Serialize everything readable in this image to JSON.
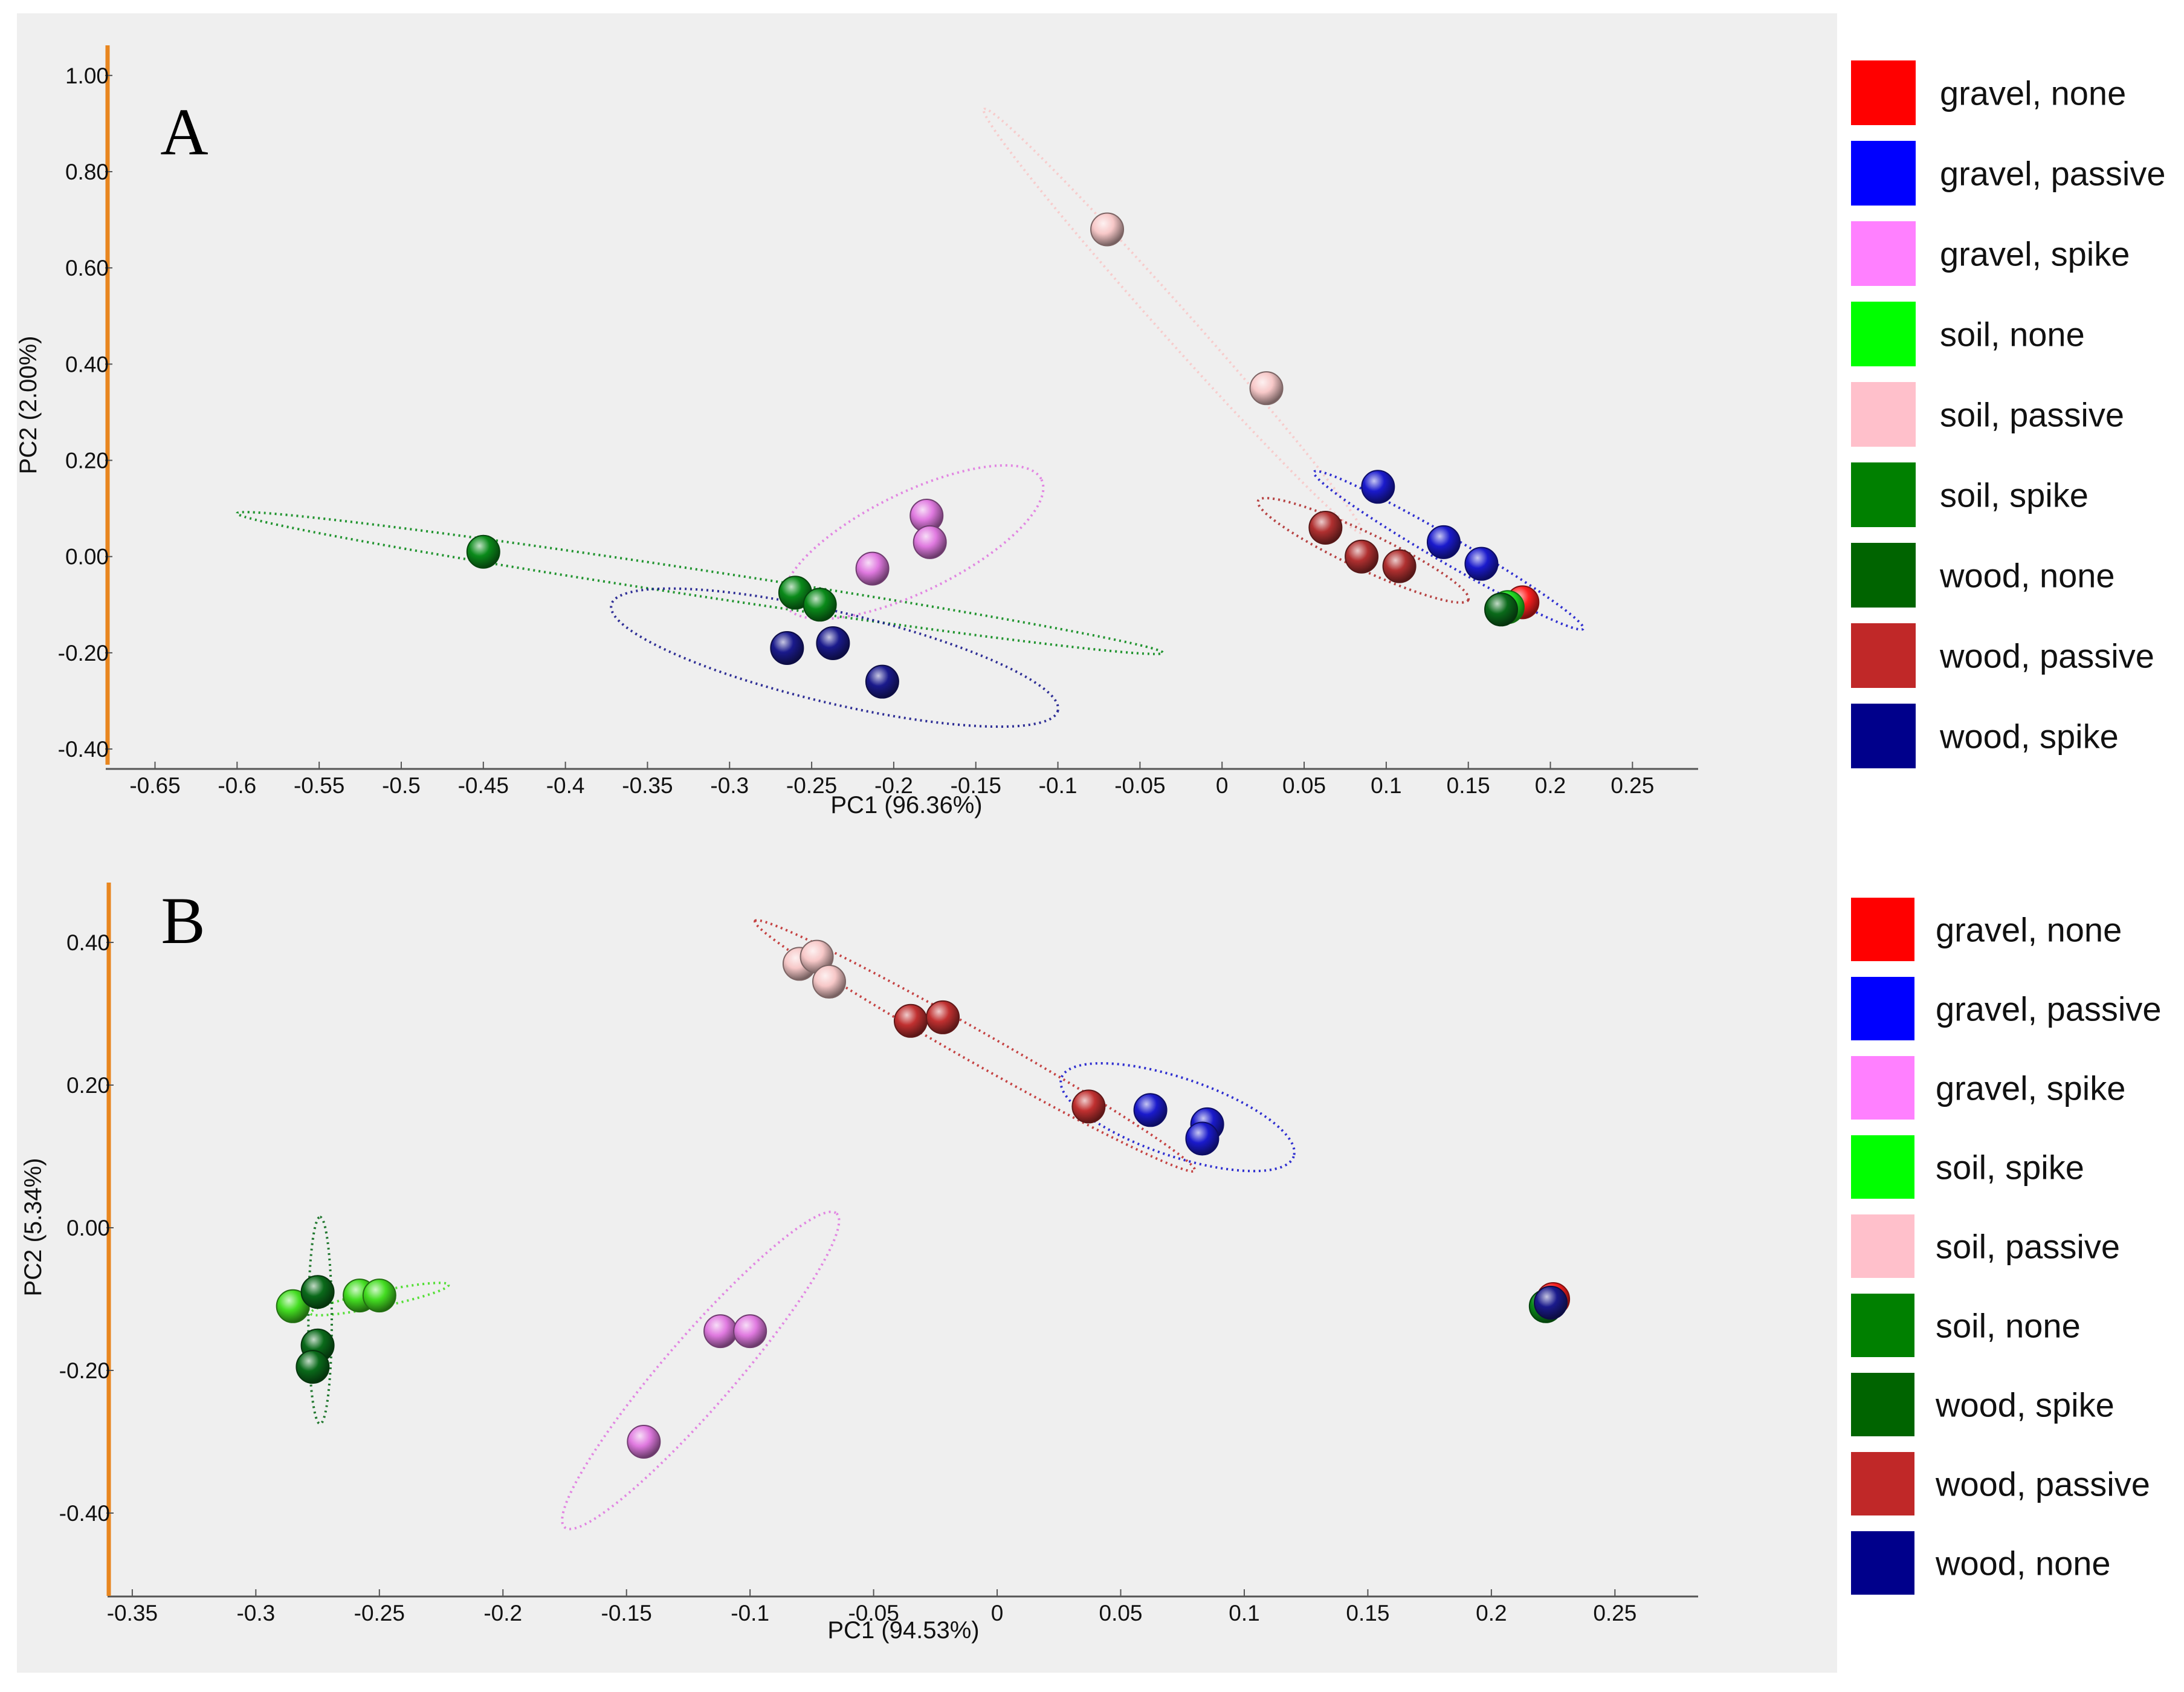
{
  "chart_data": [
    {
      "type": "scatter",
      "panel_label": "A",
      "xlabel": "PC1 (96.36%)",
      "ylabel": "PC2 (2.00%)",
      "xlim": [
        -0.68,
        0.29
      ],
      "ylim": [
        -0.42,
        1.05
      ],
      "xticks": [
        -0.65,
        -0.6,
        -0.55,
        -0.5,
        -0.45,
        -0.4,
        -0.35,
        -0.3,
        -0.25,
        -0.2,
        -0.15,
        -0.1,
        -0.05,
        0,
        0.05,
        0.1,
        0.15,
        0.2,
        0.25
      ],
      "xtick_labels": [
        "-0.65",
        "-0.6",
        "-0.55",
        "-0.5",
        "-0.45",
        "-0.4",
        "-0.35",
        "-0.3",
        "-0.25",
        "-0.2",
        "-0.15",
        "-0.1",
        "-0.05",
        "0",
        "0.05",
        "0.1",
        "0.15",
        "0.2",
        "0.25"
      ],
      "yticks": [
        -0.4,
        -0.2,
        0.0,
        0.2,
        0.4,
        0.6,
        0.8,
        1.0
      ],
      "ytick_labels": [
        "-0.40",
        "-0.20",
        "0.00",
        "0.20",
        "0.40",
        "0.60",
        "0.80",
        "1.00"
      ],
      "legend": [
        {
          "label": "gravel, none",
          "color": "#ff0000"
        },
        {
          "label": "gravel, passive",
          "color": "#0000ff"
        },
        {
          "label": "gravel, spike",
          "color": "#ff80ff"
        },
        {
          "label": "soil, none",
          "color": "#00ff00"
        },
        {
          "label": "soil, passive",
          "color": "#ffc0cb"
        },
        {
          "label": "soil, spike",
          "color": "#008000"
        },
        {
          "label": "wood, none",
          "color": "#006400"
        },
        {
          "label": "wood, passive",
          "color": "#c02828"
        },
        {
          "label": "wood, spike",
          "color": "#00008b"
        }
      ],
      "series": [
        {
          "name": "soil, passive",
          "color": "#f7c8c8",
          "points": [
            [
              -0.07,
              0.68
            ],
            [
              0.027,
              0.35
            ]
          ],
          "ellipse": {
            "center": [
              -0.03,
              0.49
            ],
            "radius_major": 0.31,
            "radius_minor": 0.012,
            "end": [
              -0.145,
              0.93
            ]
          }
        },
        {
          "name": "soil, spike",
          "color": "#0a8a1a",
          "points": [
            [
              -0.45,
              0.01
            ],
            [
              -0.26,
              -0.075
            ],
            [
              -0.245,
              -0.1
            ]
          ],
          "ellipse": {
            "center": [
              -0.318,
              -0.055
            ],
            "radius_major": 0.286,
            "radius_minor": 0.01,
            "end": [
              -0.6,
              0.09
            ]
          }
        },
        {
          "name": "gravel, spike",
          "color": "#e07ae0",
          "points": [
            [
              -0.18,
              0.085
            ],
            [
              -0.178,
              0.03
            ],
            [
              -0.213,
              -0.025
            ]
          ],
          "ellipse": {
            "center": [
              -0.188,
              0.03
            ],
            "radius_major": 0.1,
            "radius_minor": 0.038,
            "end": [
              -0.11,
              0.16
            ]
          }
        },
        {
          "name": "wood, spike",
          "color": "#1a1a8c",
          "points": [
            [
              -0.265,
              -0.19
            ],
            [
              -0.237,
              -0.18
            ],
            [
              -0.207,
              -0.26
            ]
          ],
          "ellipse": {
            "center": [
              -0.236,
              -0.21
            ],
            "radius_major": 0.15,
            "radius_minor": 0.035,
            "end": [
              -0.1,
              -0.32
            ]
          }
        },
        {
          "name": "gravel, passive",
          "color": "#1a1acc",
          "points": [
            [
              0.095,
              0.145
            ],
            [
              0.135,
              0.03
            ],
            [
              0.158,
              -0.015
            ]
          ],
          "ellipse": {
            "center": [
              0.138,
              0.013
            ],
            "radius_major": 0.16,
            "radius_minor": 0.01,
            "end": [
              0.22,
              -0.15
            ]
          }
        },
        {
          "name": "wood, passive",
          "color": "#b03030",
          "points": [
            [
              0.063,
              0.06
            ],
            [
              0.085,
              0.0
            ],
            [
              0.108,
              -0.02
            ]
          ],
          "ellipse": {
            "center": [
              0.086,
              0.013
            ],
            "radius_major": 0.15,
            "radius_minor": 0.014,
            "end": [
              0.15,
              -0.09
            ]
          }
        },
        {
          "name": "gravel, none",
          "color": "#ff2020",
          "points": [
            [
              0.183,
              -0.095
            ]
          ]
        },
        {
          "name": "soil, none",
          "color": "#22dd22",
          "points": [
            [
              0.174,
              -0.105
            ]
          ]
        },
        {
          "name": "wood, none",
          "color": "#0a6a1a",
          "points": [
            [
              0.17,
              -0.11
            ]
          ]
        }
      ]
    },
    {
      "type": "scatter",
      "panel_label": "B",
      "xlabel": "PC1 (94.53%)",
      "ylabel": "PC2 (5.34%)",
      "xlim": [
        -0.36,
        0.28
      ],
      "ylim": [
        -0.5,
        0.5
      ],
      "xticks": [
        -0.35,
        -0.3,
        -0.25,
        -0.2,
        -0.15,
        -0.1,
        -0.05,
        0,
        0.05,
        0.1,
        0.15,
        0.2,
        0.25
      ],
      "xtick_labels": [
        "-0.35",
        "-0.3",
        "-0.25",
        "-0.2",
        "-0.15",
        "-0.1",
        "-0.05",
        "0",
        "0.05",
        "0.1",
        "0.15",
        "0.2",
        "0.25"
      ],
      "yticks": [
        -0.4,
        -0.2,
        0.0,
        0.2,
        0.4
      ],
      "ytick_labels": [
        "-0.40",
        "-0.20",
        "0.00",
        "0.20",
        "0.40"
      ],
      "legend": [
        {
          "label": "gravel, none",
          "color": "#ff0000"
        },
        {
          "label": "gravel, passive",
          "color": "#0000ff"
        },
        {
          "label": "gravel, spike",
          "color": "#ff80ff"
        },
        {
          "label": "soil, spike",
          "color": "#00ff00"
        },
        {
          "label": "soil, passive",
          "color": "#ffc0cb"
        },
        {
          "label": "soil, none",
          "color": "#008000"
        },
        {
          "label": "wood, spike",
          "color": "#006400"
        },
        {
          "label": "wood, passive",
          "color": "#c02828"
        },
        {
          "label": "wood, none",
          "color": "#00008b"
        }
      ],
      "series": [
        {
          "name": "wood, passive",
          "color": "#c03030",
          "points": [
            [
              -0.035,
              0.29
            ],
            [
              -0.022,
              0.295
            ],
            [
              0.037,
              0.17
            ]
          ],
          "ellipse": {
            "center": [
              -0.009,
              0.255
            ],
            "radius_major": 0.19,
            "radius_minor": 0.008,
            "end": [
              -0.098,
              0.43
            ]
          }
        },
        {
          "name": "soil, passive",
          "color": "#f7c8c8",
          "points": [
            [
              -0.08,
              0.37
            ],
            [
              -0.073,
              0.38
            ],
            [
              -0.068,
              0.345
            ]
          ]
        },
        {
          "name": "gravel, passive",
          "color": "#1a1acc",
          "points": [
            [
              0.062,
              0.165
            ],
            [
              0.085,
              0.145
            ],
            [
              0.083,
              0.125
            ]
          ],
          "ellipse": {
            "center": [
              0.073,
              0.155
            ],
            "radius_major": 0.055,
            "radius_minor": 0.02,
            "end": [
              0.12,
              0.1
            ]
          }
        },
        {
          "name": "gravel, spike",
          "color": "#e07ae0",
          "points": [
            [
              -0.112,
              -0.145
            ],
            [
              -0.1,
              -0.145
            ],
            [
              -0.143,
              -0.3
            ]
          ],
          "ellipse": {
            "center": [
              -0.12,
              -0.2
            ],
            "radius_major": 0.23,
            "radius_minor": 0.018,
            "end": [
              -0.065,
              0.02
            ]
          }
        },
        {
          "name": "soil, spike",
          "color": "#44dd22",
          "points": [
            [
              -0.285,
              -0.11
            ],
            [
              -0.258,
              -0.095
            ],
            [
              -0.25,
              -0.095
            ]
          ],
          "ellipse": {
            "center": [
              -0.25,
              -0.1
            ],
            "radius_major": 0.085,
            "radius_minor": 0.004,
            "end": [
              -0.222,
              -0.08
            ]
          }
        },
        {
          "name": "wood, spike",
          "color": "#0a6a1a",
          "points": [
            [
              -0.275,
              -0.09
            ],
            [
              -0.275,
              -0.165
            ],
            [
              -0.277,
              -0.195
            ]
          ],
          "ellipse": {
            "center": [
              -0.274,
              -0.13
            ],
            "radius_major": 0.145,
            "radius_minor": 0.006,
            "end": [
              -0.274,
              0.015
            ]
          }
        },
        {
          "name": "gravel, none",
          "color": "#ff2020",
          "points": [
            [
              0.225,
              -0.1
            ]
          ]
        },
        {
          "name": "soil, none",
          "color": "#0a8a1a",
          "points": [
            [
              0.222,
              -0.11
            ]
          ]
        },
        {
          "name": "wood, none",
          "color": "#1a1a8c",
          "points": [
            [
              0.224,
              -0.105
            ]
          ]
        }
      ]
    }
  ]
}
